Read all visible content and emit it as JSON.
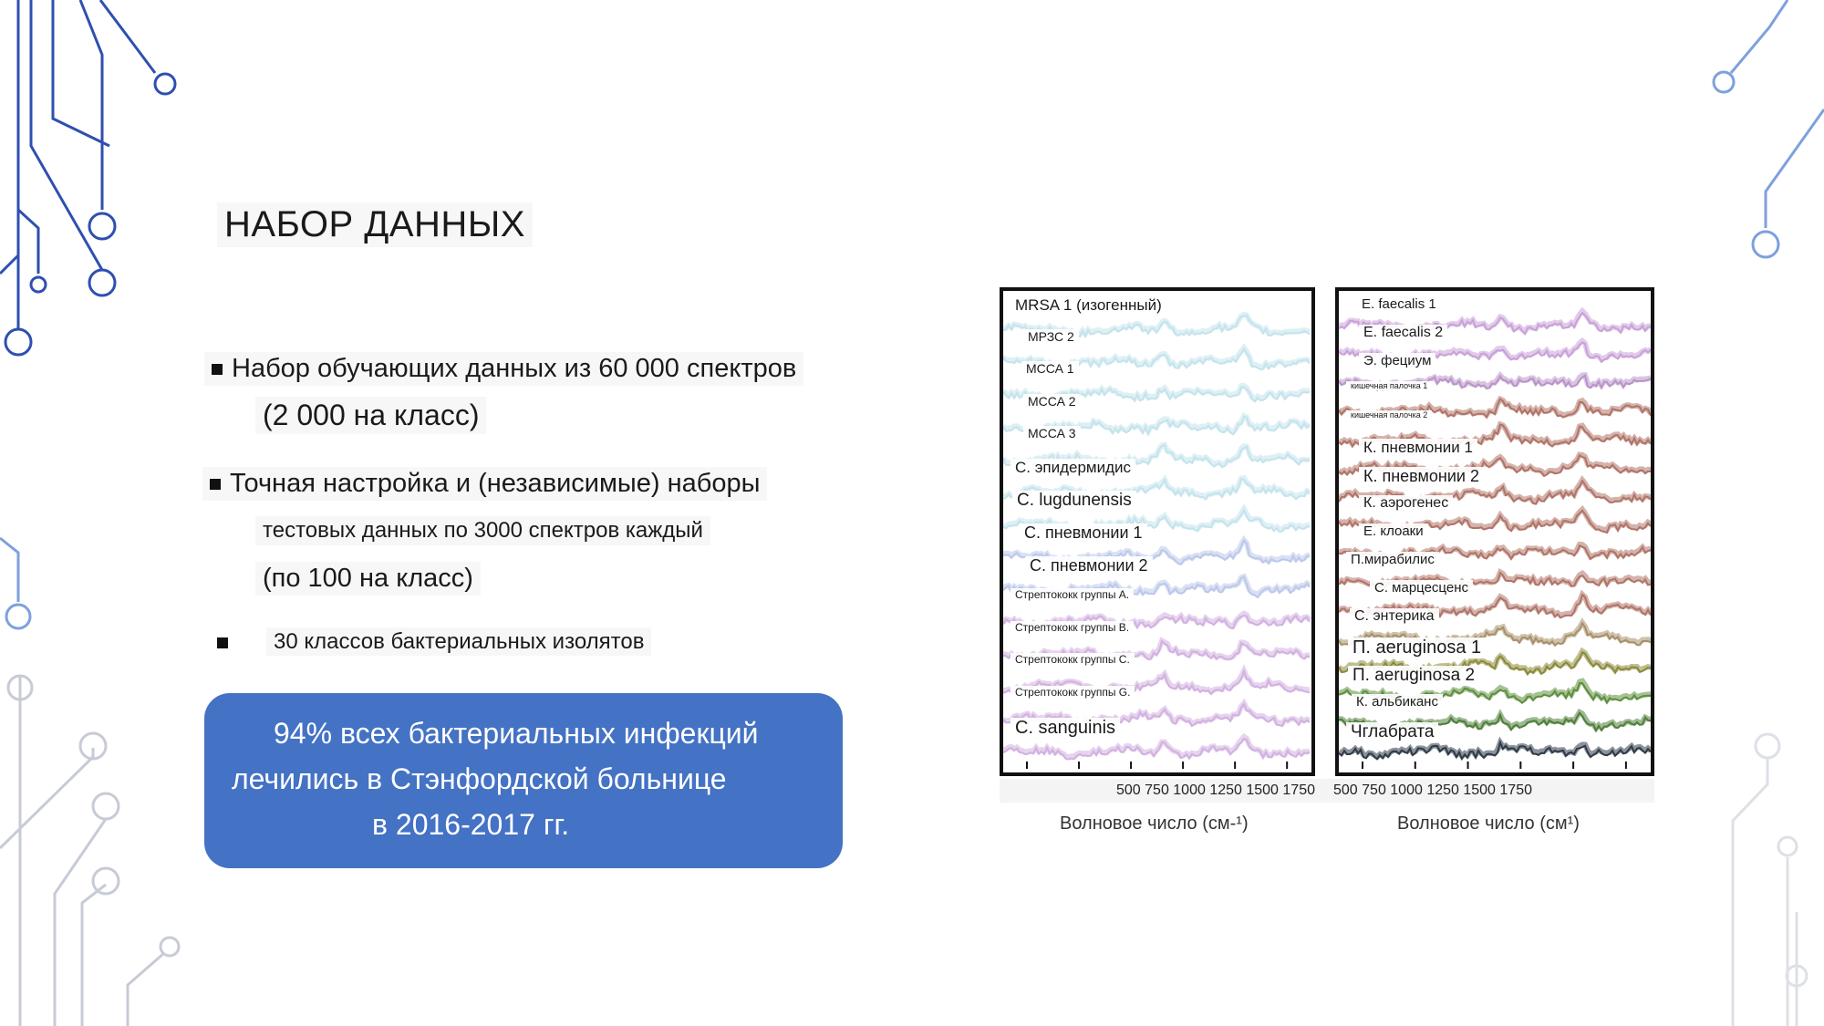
{
  "slide": {
    "title": "НАБОР ДАННЫХ",
    "bullets": [
      {
        "line1": "Набор обучающих данных из 60 000 спектров",
        "line2": "(2 000 на класс)"
      },
      {
        "line1": "Точная настройка и (независимые) наборы",
        "line2": "тестовых данных по 3000 спектров каждый",
        "line3": "(по 100 на класс)"
      },
      {
        "line1": "30 классов бактериальных изолятов"
      }
    ],
    "callout": {
      "line1": "94% всех бактериальных инфекций",
      "line2": "лечились в Стэнфордской больнице",
      "line3": "в 2016-2017 гг."
    }
  },
  "figure": {
    "left_panel": {
      "labels": [
        "MRSA 1 (изогенный)",
        "МРЗС 2",
        "МССА 1",
        "МССА 2",
        "МССА 3",
        "С. эпидермидис",
        "С. lugdunensis",
        "С. пневмонии 1",
        "С. пневмонии 2",
        "Стрептококк группы А.",
        "Стрептококк группы В.",
        "Стрептококк группы С.",
        "Стрептококк группы G.",
        "С. sanguinis"
      ],
      "colors": [
        "#c4e3ec",
        "#c4e3ec",
        "#c4e3ec",
        "#c4e3ec",
        "#c4e3ec",
        "#c4e3ec",
        "#c4e3ec",
        "#bcc8ea",
        "#bcc8ea",
        "#d2b0e0",
        "#d2b0e0",
        "#d2b0e0",
        "#d2b0e0",
        "#d2b0e0"
      ],
      "x_ticks": "500 750 1000 1250 1500 1750",
      "x_label": "Волновое число (см-¹)"
    },
    "right_panel": {
      "labels": [
        "E. faecalis 1",
        "E. faecalis 2",
        "Э. фециум",
        "кишечная палочка 1",
        "кишечная палочка 2",
        "К. пневмонии 1",
        "К. пневмонии 2",
        "К. аэрогенес",
        "Е. клоаки",
        "П.мирабилис",
        "С. марцесценс",
        "С. энтерика",
        "П. aeruginosa 1",
        "П. aeruginosa 2",
        "К. альбиканс",
        "Чглабрата"
      ],
      "colors": [
        "#c9a0d8",
        "#c9a0d8",
        "#b993c9",
        "#b07468",
        "#b07468",
        "#b07468",
        "#b07468",
        "#b07468",
        "#b07468",
        "#b07468",
        "#b07468",
        "#a8906a",
        "#8a8a3a",
        "#5e8f3e",
        "#4f7f3a",
        "#2f3b48"
      ],
      "x_ticks": "500 750 1000 1250 1500 1750",
      "x_label": "Волновое число (см¹)"
    }
  }
}
